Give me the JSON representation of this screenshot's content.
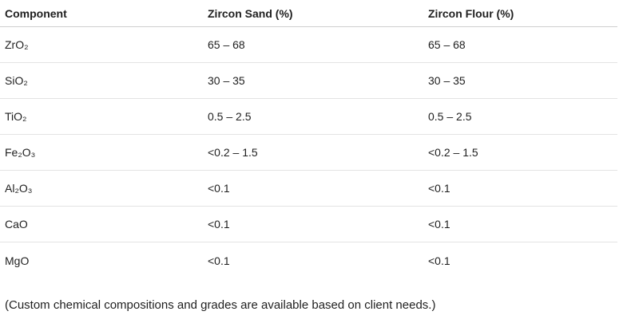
{
  "table": {
    "headers": [
      "Component",
      "Zircon Sand (%)",
      "Zircon Flour (%)"
    ],
    "rows": [
      [
        "ZrO₂",
        "65 – 68",
        "65 – 68"
      ],
      [
        "SiO₂",
        "30 – 35",
        "30 – 35"
      ],
      [
        "TiO₂",
        "0.5 – 2.5",
        "0.5 – 2.5"
      ],
      [
        "Fe₂O₃",
        "<0.2 – 1.5",
        "<0.2 – 1.5"
      ],
      [
        "Al₂O₃",
        "<0.1",
        "<0.1"
      ],
      [
        "CaO",
        "<0.1",
        "<0.1"
      ],
      [
        "MgO",
        "<0.1",
        "<0.1"
      ]
    ]
  },
  "note": "(Custom chemical compositions and grades are available based on client needs.)"
}
